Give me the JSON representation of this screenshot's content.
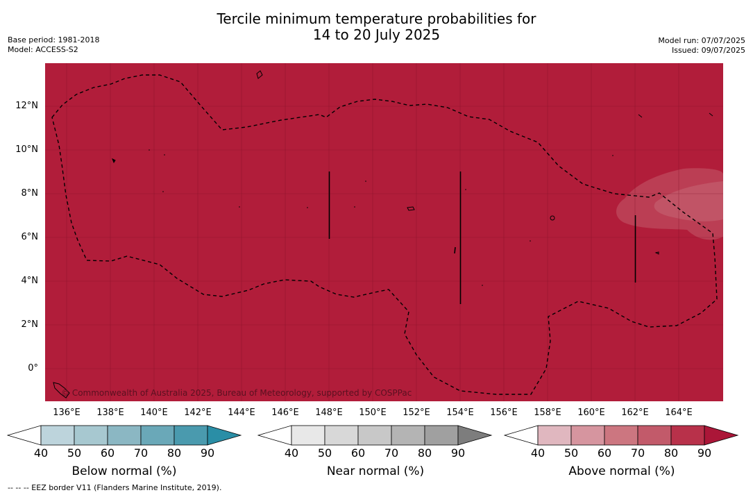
{
  "title_line1": "Tercile minimum temperature probabilities for",
  "title_line2": "14 to 20 July 2025",
  "base_period": "Base period: 1981-2018",
  "model": "Model: ACCESS-S2",
  "model_run": "Model run: 07/07/2025",
  "issued": "Issued: 09/07/2025",
  "lat_labels": [
    "12°N",
    "10°N",
    "8°N",
    "6°N",
    "4°N",
    "2°N",
    "0°"
  ],
  "lon_labels": [
    "136°E",
    "138°E",
    "140°E",
    "142°E",
    "144°E",
    "146°E",
    "148°E",
    "150°E",
    "152°E",
    "154°E",
    "156°E",
    "158°E",
    "160°E",
    "162°E",
    "164°E"
  ],
  "credit": "© Commonwealth of Australia 2025, Bureau of Meteorology, supported by COSPPac",
  "colorbars": [
    {
      "label": "Below normal (%)",
      "ticks": [
        "40",
        "50",
        "60",
        "70",
        "80",
        "90"
      ],
      "colors": [
        "#ffffff",
        "#bdd4dc",
        "#a7c8d0",
        "#8bb7c3",
        "#6aa8b8",
        "#4a9aae",
        "#2a8ea6"
      ]
    },
    {
      "label": "Near normal (%)",
      "ticks": [
        "40",
        "50",
        "60",
        "70",
        "80",
        "90"
      ],
      "colors": [
        "#ffffff",
        "#e8e8e8",
        "#d8d8d8",
        "#c8c8c8",
        "#b4b4b4",
        "#a0a0a0",
        "#7d7d7d"
      ]
    },
    {
      "label": "Above normal (%)",
      "ticks": [
        "40",
        "50",
        "60",
        "70",
        "80",
        "90"
      ],
      "colors": [
        "#ffffff",
        "#e0b7bf",
        "#d6959f",
        "#cc7680",
        "#c25a6a",
        "#b8314a",
        "#ab1638"
      ]
    }
  ],
  "footnote": "--  --  -- EEZ border V11 (Flanders Marine Institute, 2019).",
  "map_fill_color": "#b11d3a"
}
